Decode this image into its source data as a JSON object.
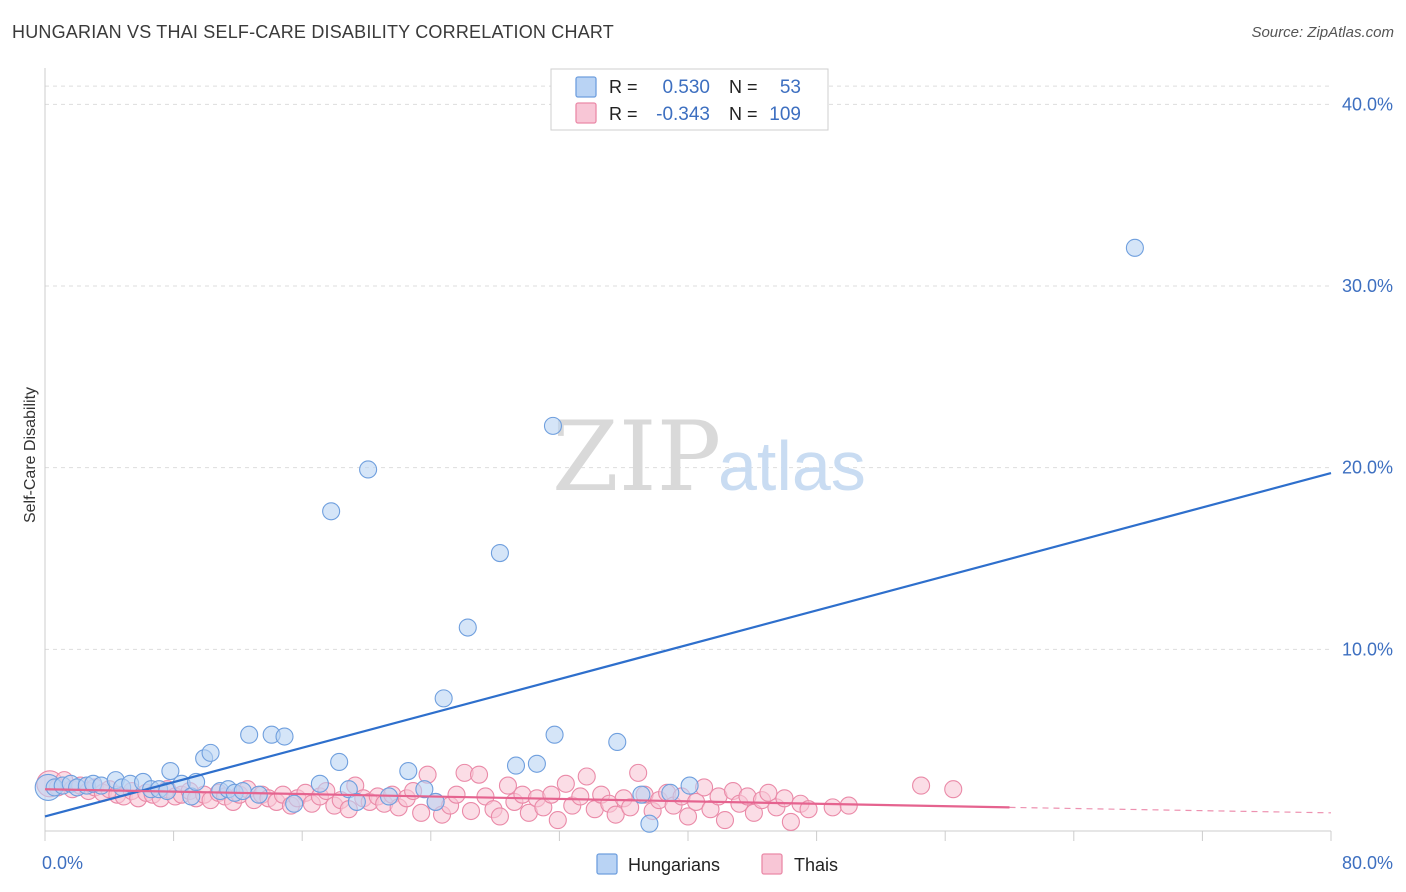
{
  "header": {
    "title": "HUNGARIAN VS THAI SELF-CARE DISABILITY CORRELATION CHART",
    "source": "Source: ZipAtlas.com"
  },
  "watermark": {
    "zip": "ZIP",
    "atlas": "atlas"
  },
  "legend_top": {
    "rows": [
      {
        "r_label": "R =",
        "r_value": "0.530",
        "n_label": "N =",
        "n_value": "53",
        "color": "#a9c8f0"
      },
      {
        "r_label": "R =",
        "r_value": "-0.343",
        "n_label": "N =",
        "n_value": "109",
        "color": "#f5b8cb"
      }
    ]
  },
  "legend_bottom": {
    "items": [
      {
        "label": "Hungarians",
        "color": "#a9c8f0"
      },
      {
        "label": "Thais",
        "color": "#f5b8cb"
      }
    ]
  },
  "chart_data": {
    "type": "scatter",
    "title": "HUNGARIAN VS THAI SELF-CARE DISABILITY CORRELATION CHART",
    "xlabel": "",
    "ylabel": "Self-Care Disability",
    "xlim": [
      0,
      80
    ],
    "ylim": [
      0,
      42
    ],
    "x_tick_labels": [
      "0.0%",
      "80.0%"
    ],
    "y_ticks": [
      10,
      20,
      30,
      40
    ],
    "y_tick_labels": [
      "10.0%",
      "20.0%",
      "30.0%",
      "40.0%"
    ],
    "grid": true,
    "legend_position": "top-center",
    "series": [
      {
        "name": "Hungarians",
        "color": "#6f9fde",
        "fill": "#b9d3f4",
        "trend": {
          "x": [
            0,
            80
          ],
          "y": [
            0.8,
            19.7
          ],
          "color": "#2e6fcc"
        },
        "points": [
          [
            0.2,
            2.4
          ],
          [
            0.6,
            2.4
          ],
          [
            1.1,
            2.5
          ],
          [
            1.6,
            2.6
          ],
          [
            2.0,
            2.4
          ],
          [
            2.6,
            2.5
          ],
          [
            3.0,
            2.6
          ],
          [
            3.5,
            2.5
          ],
          [
            4.4,
            2.8
          ],
          [
            4.8,
            2.4
          ],
          [
            5.3,
            2.6
          ],
          [
            6.1,
            2.7
          ],
          [
            6.6,
            2.3
          ],
          [
            7.1,
            2.3
          ],
          [
            7.6,
            2.2
          ],
          [
            7.8,
            3.3
          ],
          [
            8.5,
            2.6
          ],
          [
            9.1,
            1.9
          ],
          [
            9.4,
            2.7
          ],
          [
            9.9,
            4.0
          ],
          [
            10.3,
            4.3
          ],
          [
            10.9,
            2.2
          ],
          [
            11.4,
            2.3
          ],
          [
            11.8,
            2.1
          ],
          [
            12.3,
            2.2
          ],
          [
            12.7,
            5.3
          ],
          [
            13.3,
            2.0
          ],
          [
            14.1,
            5.3
          ],
          [
            14.9,
            5.2
          ],
          [
            15.5,
            1.5
          ],
          [
            17.1,
            2.6
          ],
          [
            17.8,
            17.6
          ],
          [
            18.3,
            3.8
          ],
          [
            18.9,
            2.3
          ],
          [
            19.4,
            1.6
          ],
          [
            20.1,
            19.9
          ],
          [
            21.4,
            1.9
          ],
          [
            22.6,
            3.3
          ],
          [
            23.6,
            2.3
          ],
          [
            24.3,
            1.6
          ],
          [
            24.8,
            7.3
          ],
          [
            26.3,
            11.2
          ],
          [
            28.3,
            15.3
          ],
          [
            29.3,
            3.6
          ],
          [
            30.6,
            3.7
          ],
          [
            31.6,
            22.3
          ],
          [
            31.7,
            5.3
          ],
          [
            35.6,
            4.9
          ],
          [
            37.1,
            2.0
          ],
          [
            37.6,
            0.4
          ],
          [
            38.9,
            2.1
          ],
          [
            40.1,
            2.5
          ],
          [
            67.8,
            32.1
          ]
        ]
      },
      {
        "name": "Thais",
        "color": "#ea8aa8",
        "fill": "#f8c6d6",
        "trend": {
          "x": [
            0,
            60
          ],
          "y": [
            2.3,
            1.3
          ],
          "color": "#e5638f"
        },
        "trend_dashed": {
          "x": [
            60,
            80
          ],
          "y": [
            1.3,
            1.0
          ]
        },
        "points": [
          [
            0.3,
            2.6
          ],
          [
            0.8,
            2.4
          ],
          [
            1.2,
            2.8
          ],
          [
            1.7,
            2.3
          ],
          [
            2.2,
            2.5
          ],
          [
            2.7,
            2.2
          ],
          [
            3.1,
            2.4
          ],
          [
            3.6,
            2.1
          ],
          [
            4.0,
            2.3
          ],
          [
            4.5,
            2.0
          ],
          [
            4.9,
            1.9
          ],
          [
            5.4,
            2.2
          ],
          [
            5.8,
            1.8
          ],
          [
            6.3,
            2.1
          ],
          [
            6.7,
            2.0
          ],
          [
            7.2,
            1.8
          ],
          [
            7.6,
            2.3
          ],
          [
            8.1,
            1.9
          ],
          [
            8.5,
            2.0
          ],
          [
            9.0,
            2.2
          ],
          [
            9.4,
            1.8
          ],
          [
            9.9,
            2.0
          ],
          [
            10.3,
            1.7
          ],
          [
            10.8,
            2.1
          ],
          [
            11.2,
            1.9
          ],
          [
            11.7,
            1.6
          ],
          [
            12.1,
            2.0
          ],
          [
            12.6,
            2.3
          ],
          [
            13.0,
            1.7
          ],
          [
            13.5,
            2.0
          ],
          [
            13.9,
            1.8
          ],
          [
            14.4,
            1.6
          ],
          [
            14.8,
            2.0
          ],
          [
            15.3,
            1.4
          ],
          [
            15.7,
            1.8
          ],
          [
            16.2,
            2.1
          ],
          [
            16.6,
            1.5
          ],
          [
            17.1,
            1.9
          ],
          [
            17.5,
            2.2
          ],
          [
            18.0,
            1.4
          ],
          [
            18.4,
            1.7
          ],
          [
            18.9,
            1.2
          ],
          [
            19.3,
            2.5
          ],
          [
            19.8,
            1.8
          ],
          [
            20.2,
            1.6
          ],
          [
            20.7,
            1.9
          ],
          [
            21.1,
            1.5
          ],
          [
            21.6,
            2.0
          ],
          [
            22.0,
            1.3
          ],
          [
            22.5,
            1.8
          ],
          [
            22.9,
            2.2
          ],
          [
            23.4,
            1.0
          ],
          [
            23.8,
            3.1
          ],
          [
            24.3,
            1.6
          ],
          [
            24.7,
            0.9
          ],
          [
            25.2,
            1.4
          ],
          [
            25.6,
            2.0
          ],
          [
            26.1,
            3.2
          ],
          [
            26.5,
            1.1
          ],
          [
            27.0,
            3.1
          ],
          [
            27.4,
            1.9
          ],
          [
            27.9,
            1.2
          ],
          [
            28.3,
            0.8
          ],
          [
            28.8,
            2.5
          ],
          [
            29.2,
            1.6
          ],
          [
            29.7,
            2.0
          ],
          [
            30.1,
            1.0
          ],
          [
            30.6,
            1.8
          ],
          [
            31.0,
            1.3
          ],
          [
            31.5,
            2.0
          ],
          [
            31.9,
            0.6
          ],
          [
            32.4,
            2.6
          ],
          [
            32.8,
            1.4
          ],
          [
            33.3,
            1.9
          ],
          [
            33.7,
            3.0
          ],
          [
            34.2,
            1.2
          ],
          [
            34.6,
            2.0
          ],
          [
            35.1,
            1.5
          ],
          [
            35.5,
            0.9
          ],
          [
            36.0,
            1.8
          ],
          [
            36.4,
            1.3
          ],
          [
            36.9,
            3.2
          ],
          [
            37.3,
            2.0
          ],
          [
            37.8,
            1.1
          ],
          [
            38.2,
            1.7
          ],
          [
            38.7,
            2.1
          ],
          [
            39.1,
            1.4
          ],
          [
            39.6,
            1.9
          ],
          [
            40.0,
            0.8
          ],
          [
            40.5,
            1.6
          ],
          [
            41.0,
            2.4
          ],
          [
            41.4,
            1.2
          ],
          [
            41.9,
            1.9
          ],
          [
            42.3,
            0.6
          ],
          [
            42.8,
            2.2
          ],
          [
            43.2,
            1.5
          ],
          [
            43.7,
            1.9
          ],
          [
            44.1,
            1.0
          ],
          [
            44.6,
            1.7
          ],
          [
            45.0,
            2.1
          ],
          [
            45.5,
            1.3
          ],
          [
            46.0,
            1.8
          ],
          [
            46.4,
            0.5
          ],
          [
            47.0,
            1.5
          ],
          [
            47.5,
            1.2
          ],
          [
            49.0,
            1.3
          ],
          [
            50.0,
            1.4
          ],
          [
            54.5,
            2.5
          ],
          [
            56.5,
            2.3
          ]
        ]
      }
    ]
  }
}
